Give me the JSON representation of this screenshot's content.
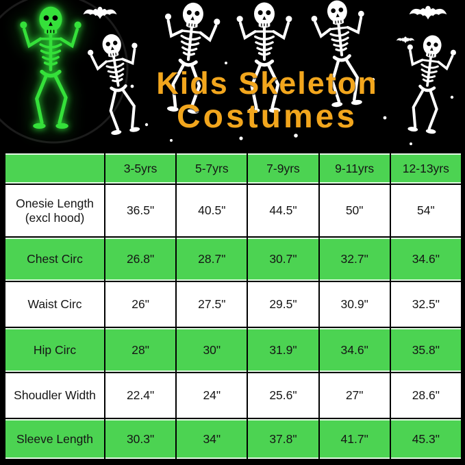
{
  "hero": {
    "title_line1": "Kids Skeleton",
    "title_line2": "Costumes",
    "colors": {
      "title_orange": "#F2A61D",
      "glow_skeleton_green": "#35E03A",
      "bone_white": "#FFFFFF",
      "background": "#000000"
    }
  },
  "size_chart": {
    "columns": [
      "3-5yrs",
      "5-7yrs",
      "7-9yrs",
      "9-11yrs",
      "12-13yrs"
    ],
    "rows": [
      {
        "label": "Onesie Length",
        "sublabel": "(excl hood)",
        "values": [
          "36.5\"",
          "40.5\"",
          "44.5\"",
          "50\"",
          "54\""
        ]
      },
      {
        "label": "Chest Circ",
        "sublabel": "",
        "values": [
          "26.8\"",
          "28.7\"",
          "30.7\"",
          "32.7\"",
          "34.6\""
        ]
      },
      {
        "label": "Waist Circ",
        "sublabel": "",
        "values": [
          "26\"",
          "27.5\"",
          "29.5\"",
          "30.9\"",
          "32.5\""
        ]
      },
      {
        "label": "Hip Circ",
        "sublabel": "",
        "values": [
          "28\"",
          "30\"",
          "31.9\"",
          "34.6\"",
          "35.8\""
        ]
      },
      {
        "label": "Shoudler Width",
        "sublabel": "",
        "values": [
          "22.4\"",
          "24\"",
          "25.6\"",
          "27\"",
          "28.6\""
        ]
      },
      {
        "label": "Sleeve Length",
        "sublabel": "",
        "values": [
          "30.3\"",
          "34\"",
          "37.8\"",
          "41.7\"",
          "45.3\""
        ]
      }
    ],
    "colors": {
      "green": "#4CD352",
      "white": "#FFFFFF",
      "border": "#000000",
      "text": "#151515"
    }
  },
  "chart_data": {
    "type": "table",
    "title": "Kids Skeleton Costumes",
    "columns": [
      "",
      "3-5yrs",
      "5-7yrs",
      "7-9yrs",
      "9-11yrs",
      "12-13yrs"
    ],
    "rows": [
      [
        "Onesie Length (excl hood)",
        "36.5\"",
        "40.5\"",
        "44.5\"",
        "50\"",
        "54\""
      ],
      [
        "Chest Circ",
        "26.8\"",
        "28.7\"",
        "30.7\"",
        "32.7\"",
        "34.6\""
      ],
      [
        "Waist Circ",
        "26\"",
        "27.5\"",
        "29.5\"",
        "30.9\"",
        "32.5\""
      ],
      [
        "Hip Circ",
        "28\"",
        "30\"",
        "31.9\"",
        "34.6\"",
        "35.8\""
      ],
      [
        "Shoudler Width",
        "22.4\"",
        "24\"",
        "25.6\"",
        "27\"",
        "28.6\""
      ],
      [
        "Sleeve Length",
        "30.3\"",
        "34\"",
        "37.8\"",
        "41.7\"",
        "45.3\""
      ]
    ]
  }
}
